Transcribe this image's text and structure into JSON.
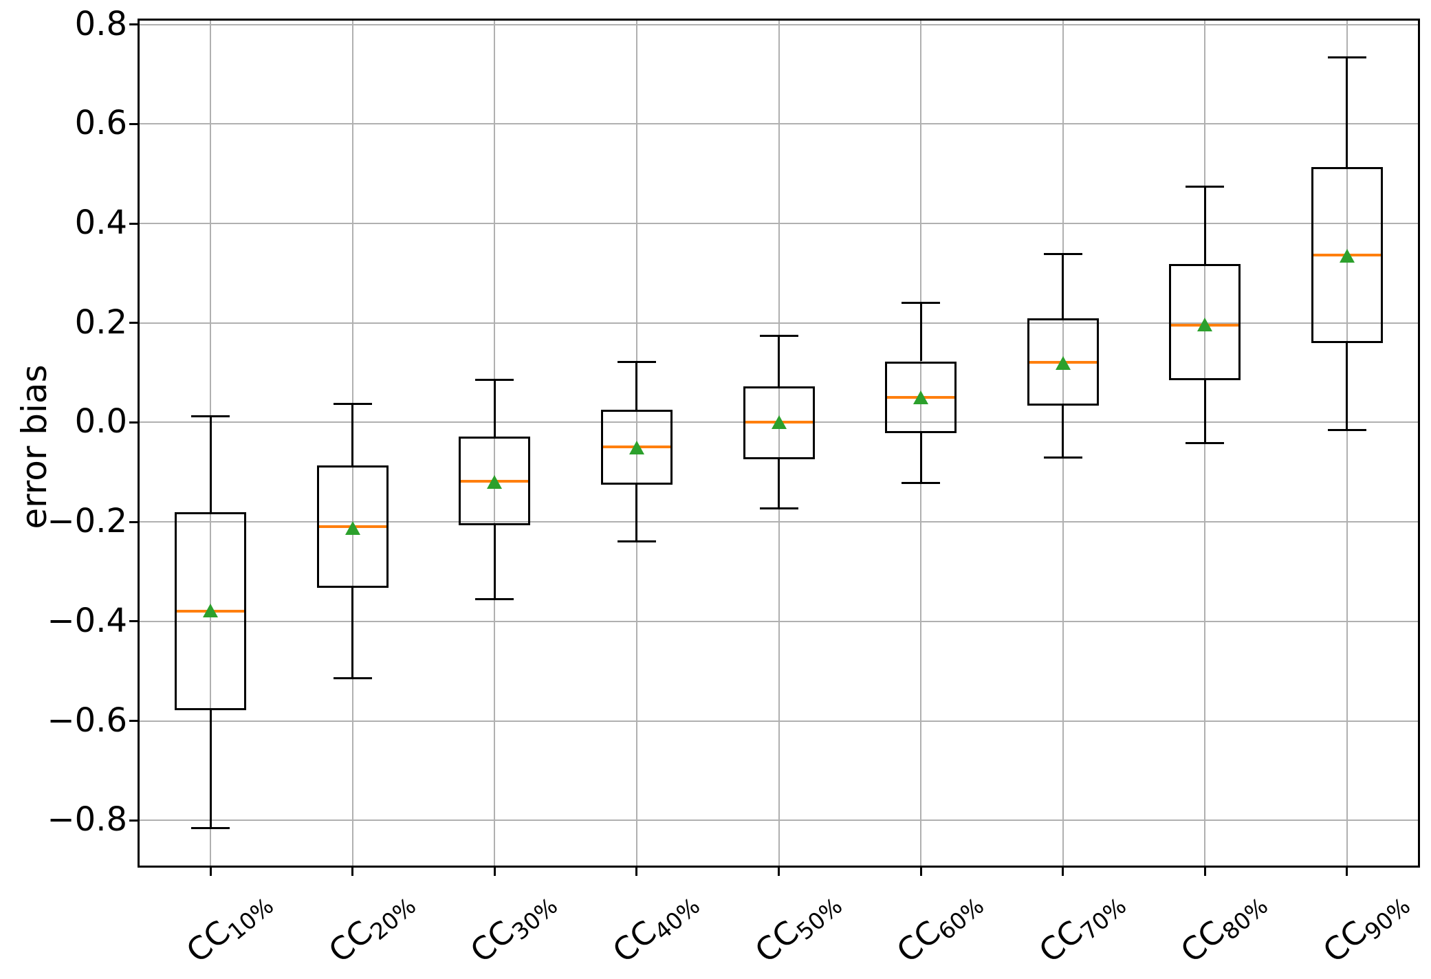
{
  "figure": {
    "background": "#ffffff"
  },
  "chart_data": {
    "type": "boxplot",
    "title": "",
    "xlabel": "",
    "ylabel": "error bias",
    "grid": true,
    "legend": false,
    "ylim": [
      -0.891,
      0.808
    ],
    "yticks": [
      0.8,
      0.6,
      0.4,
      0.2,
      0.0,
      -0.2,
      -0.4,
      -0.6,
      -0.8
    ],
    "ytick_labels": [
      "0.8",
      "0.6",
      "0.4",
      "0.2",
      "0.0",
      "−0.2",
      "−0.4",
      "−0.6",
      "−0.8"
    ],
    "colors": {
      "box_line": "#000000",
      "whisker": "#000000",
      "median": "#ff7f0e",
      "mean_marker": "#2ca02c",
      "grid": "#b0b0b0",
      "spine": "#000000"
    },
    "categories": [
      {
        "base": "CC",
        "sub": "10%"
      },
      {
        "base": "CC",
        "sub": "20%"
      },
      {
        "base": "CC",
        "sub": "30%"
      },
      {
        "base": "CC",
        "sub": "40%"
      },
      {
        "base": "CC",
        "sub": "50%"
      },
      {
        "base": "CC",
        "sub": "60%"
      },
      {
        "base": "CC",
        "sub": "70%"
      },
      {
        "base": "CC",
        "sub": "80%"
      },
      {
        "base": "CC",
        "sub": "90%"
      }
    ],
    "series": [
      {
        "category": "CC10%",
        "whisker_low": -0.815,
        "q1": -0.578,
        "median": -0.379,
        "mean": -0.378,
        "q3": -0.181,
        "whisker_high": 0.013
      },
      {
        "category": "CC20%",
        "whisker_low": -0.514,
        "q1": -0.332,
        "median": -0.209,
        "mean": -0.212,
        "q3": -0.086,
        "whisker_high": 0.037
      },
      {
        "category": "CC30%",
        "whisker_low": -0.356,
        "q1": -0.207,
        "median": -0.118,
        "mean": -0.12,
        "q3": -0.029,
        "whisker_high": 0.085
      },
      {
        "category": "CC40%",
        "whisker_low": -0.239,
        "q1": -0.125,
        "median": -0.049,
        "mean": -0.05,
        "q3": 0.025,
        "whisker_high": 0.122
      },
      {
        "category": "CC50%",
        "whisker_low": -0.173,
        "q1": -0.074,
        "median": 0.0,
        "mean": 0.0,
        "q3": 0.073,
        "whisker_high": 0.174
      },
      {
        "category": "CC60%",
        "whisker_low": -0.121,
        "q1": -0.022,
        "median": 0.051,
        "mean": 0.05,
        "q3": 0.123,
        "whisker_high": 0.24
      },
      {
        "category": "CC70%",
        "whisker_low": -0.07,
        "q1": 0.034,
        "median": 0.121,
        "mean": 0.12,
        "q3": 0.209,
        "whisker_high": 0.339
      },
      {
        "category": "CC80%",
        "whisker_low": -0.042,
        "q1": 0.085,
        "median": 0.196,
        "mean": 0.197,
        "q3": 0.318,
        "whisker_high": 0.474
      },
      {
        "category": "CC90%",
        "whisker_low": -0.015,
        "q1": 0.16,
        "median": 0.336,
        "mean": 0.335,
        "q3": 0.514,
        "whisker_high": 0.734
      }
    ]
  }
}
